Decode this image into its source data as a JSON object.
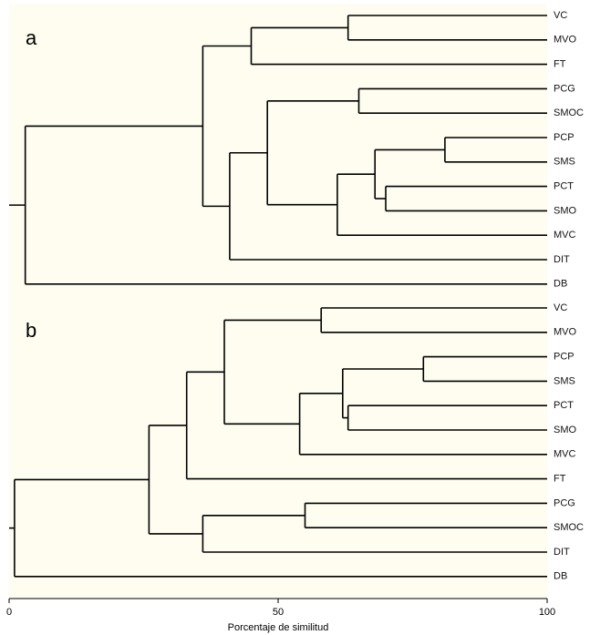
{
  "chart_data": {
    "type": "dendrogram",
    "xlabel": "Porcentaje de similitud",
    "xlim": [
      0,
      100
    ],
    "xticks": [
      0,
      50,
      100
    ],
    "panels": [
      {
        "label": "a",
        "leaves": [
          "VC",
          "MVO",
          "FT",
          "PCG",
          "SMOC",
          "PCP",
          "SMS",
          "PCT",
          "SMO",
          "MVC",
          "DIT",
          "DB"
        ],
        "merges": [
          {
            "id": "n1",
            "left": "VC",
            "right": "MVO",
            "similarity": 63
          },
          {
            "id": "n2",
            "left": "n1",
            "right": "FT",
            "similarity": 45
          },
          {
            "id": "n3",
            "left": "PCG",
            "right": "SMOC",
            "similarity": 65
          },
          {
            "id": "n4",
            "left": "PCP",
            "right": "SMS",
            "similarity": 81
          },
          {
            "id": "n5",
            "left": "PCT",
            "right": "SMO",
            "similarity": 70
          },
          {
            "id": "n6",
            "left": "n4",
            "right": "n5",
            "similarity": 68
          },
          {
            "id": "n7",
            "left": "n6",
            "right": "MVC",
            "similarity": 61
          },
          {
            "id": "n8",
            "left": "n3",
            "right": "n7",
            "similarity": 48
          },
          {
            "id": "n9",
            "left": "n8",
            "right": "DIT",
            "similarity": 41
          },
          {
            "id": "n10",
            "left": "n2",
            "right": "n9",
            "similarity": 36
          },
          {
            "id": "n11",
            "left": "n10",
            "right": "DB",
            "similarity": 3
          }
        ]
      },
      {
        "label": "b",
        "leaves": [
          "VC",
          "MVO",
          "PCP",
          "SMS",
          "PCT",
          "SMO",
          "MVC",
          "FT",
          "PCG",
          "SMOC",
          "DIT",
          "DB"
        ],
        "merges": [
          {
            "id": "m1",
            "left": "VC",
            "right": "MVO",
            "similarity": 58
          },
          {
            "id": "m2",
            "left": "PCP",
            "right": "SMS",
            "similarity": 77
          },
          {
            "id": "m3",
            "left": "PCT",
            "right": "SMO",
            "similarity": 63
          },
          {
            "id": "m4",
            "left": "m2",
            "right": "m3",
            "similarity": 62
          },
          {
            "id": "m5",
            "left": "m4",
            "right": "MVC",
            "similarity": 54
          },
          {
            "id": "m6",
            "left": "m1",
            "right": "m5",
            "similarity": 40
          },
          {
            "id": "m7",
            "left": "m6",
            "right": "FT",
            "similarity": 33
          },
          {
            "id": "m8",
            "left": "PCG",
            "right": "SMOC",
            "similarity": 55
          },
          {
            "id": "m9",
            "left": "m8",
            "right": "DIT",
            "similarity": 36
          },
          {
            "id": "m10",
            "left": "m7",
            "right": "m9",
            "similarity": 26
          },
          {
            "id": "m11",
            "left": "m10",
            "right": "DB",
            "similarity": 1
          }
        ]
      }
    ]
  }
}
